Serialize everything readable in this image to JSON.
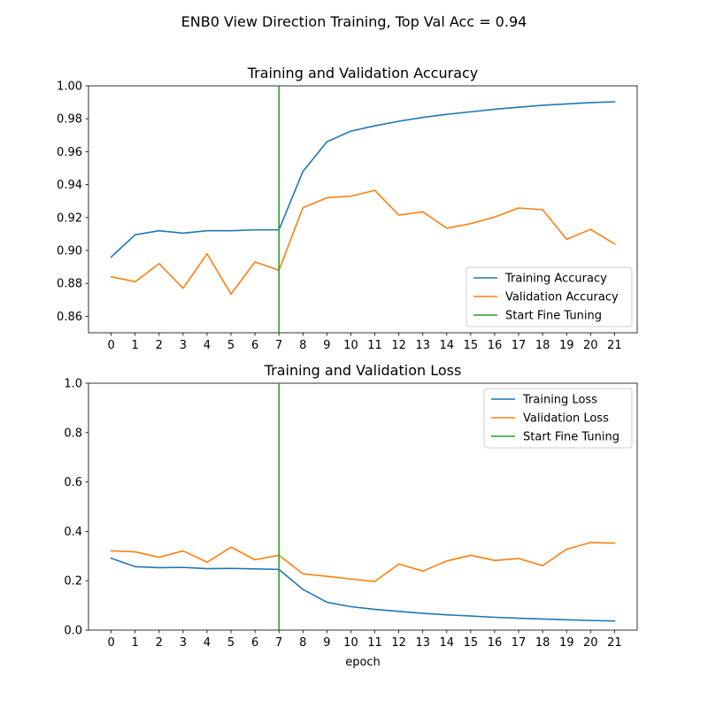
{
  "figure": {
    "suptitle": "ENB0 View Direction Training, Top Val Acc = 0.94"
  },
  "colors": {
    "training": "#1f77b4",
    "validation": "#ff7f0e",
    "fine_tune": "#2ca02c"
  },
  "chart_data": [
    {
      "type": "line",
      "title": "Training and Validation Accuracy",
      "xlabel": "",
      "ylabel": "",
      "x": [
        0,
        1,
        2,
        3,
        4,
        5,
        6,
        7,
        8,
        9,
        10,
        11,
        12,
        13,
        14,
        15,
        16,
        17,
        18,
        19,
        20,
        21
      ],
      "xticks": [
        "0",
        "1",
        "2",
        "3",
        "4",
        "5",
        "6",
        "7",
        "8",
        "9",
        "10",
        "11",
        "12",
        "13",
        "14",
        "15",
        "16",
        "17",
        "18",
        "19",
        "20",
        "21"
      ],
      "ylim": [
        0.85,
        1.0
      ],
      "yticks": [
        0.86,
        0.88,
        0.9,
        0.92,
        0.94,
        0.96,
        0.98,
        1.0
      ],
      "ytick_labels": [
        "0.86",
        "0.88",
        "0.90",
        "0.92",
        "0.94",
        "0.96",
        "0.98",
        "1.00"
      ],
      "series": [
        {
          "name": "Training Accuracy",
          "color": "#1f77b4",
          "values": [
            0.896,
            0.9095,
            0.912,
            0.9105,
            0.912,
            0.912,
            0.9125,
            0.9125,
            0.948,
            0.966,
            0.9725,
            0.9757,
            0.9785,
            0.9808,
            0.9827,
            0.9842,
            0.9858,
            0.987,
            0.9882,
            0.989,
            0.9898,
            0.9903
          ]
        },
        {
          "name": "Validation Accuracy",
          "color": "#ff7f0e",
          "values": [
            0.884,
            0.881,
            0.892,
            0.877,
            0.898,
            0.8735,
            0.893,
            0.888,
            0.926,
            0.932,
            0.933,
            0.9365,
            0.9215,
            0.9235,
            0.9135,
            0.9163,
            0.9203,
            0.9258,
            0.9248,
            0.9068,
            0.9128,
            0.904
          ]
        }
      ],
      "vline": {
        "name": "Start Fine Tuning",
        "x": 7,
        "color": "#2ca02c"
      },
      "legend": {
        "placement": "lower-right",
        "entries": [
          "Training Accuracy",
          "Validation Accuracy",
          "Start Fine Tuning"
        ]
      },
      "grid": false
    },
    {
      "type": "line",
      "title": "Training and Validation Loss",
      "xlabel": "epoch",
      "ylabel": "",
      "x": [
        0,
        1,
        2,
        3,
        4,
        5,
        6,
        7,
        8,
        9,
        10,
        11,
        12,
        13,
        14,
        15,
        16,
        17,
        18,
        19,
        20,
        21
      ],
      "xticks": [
        "0",
        "1",
        "2",
        "3",
        "4",
        "5",
        "6",
        "7",
        "8",
        "9",
        "10",
        "11",
        "12",
        "13",
        "14",
        "15",
        "16",
        "17",
        "18",
        "19",
        "20",
        "21"
      ],
      "ylim": [
        0.0,
        1.0
      ],
      "yticks": [
        0.0,
        0.2,
        0.4,
        0.6,
        0.8,
        1.0
      ],
      "ytick_labels": [
        "0.0",
        "0.2",
        "0.4",
        "0.6",
        "0.8",
        "1.0"
      ],
      "series": [
        {
          "name": "Training Loss",
          "color": "#1f77b4",
          "values": [
            0.291,
            0.257,
            0.253,
            0.254,
            0.249,
            0.25,
            0.248,
            0.246,
            0.165,
            0.113,
            0.095,
            0.084,
            0.076,
            0.068,
            0.062,
            0.057,
            0.052,
            0.048,
            0.045,
            0.042,
            0.039,
            0.037
          ]
        },
        {
          "name": "Validation Loss",
          "color": "#ff7f0e",
          "values": [
            0.321,
            0.317,
            0.295,
            0.321,
            0.275,
            0.336,
            0.285,
            0.303,
            0.228,
            0.218,
            0.207,
            0.197,
            0.268,
            0.239,
            0.28,
            0.303,
            0.282,
            0.29,
            0.261,
            0.328,
            0.355,
            0.352
          ]
        }
      ],
      "vline": {
        "name": "Start Fine Tuning",
        "x": 7,
        "color": "#2ca02c"
      },
      "legend": {
        "placement": "upper-right",
        "entries": [
          "Training Loss",
          "Validation Loss",
          "Start Fine Tuning"
        ]
      },
      "grid": false
    }
  ]
}
